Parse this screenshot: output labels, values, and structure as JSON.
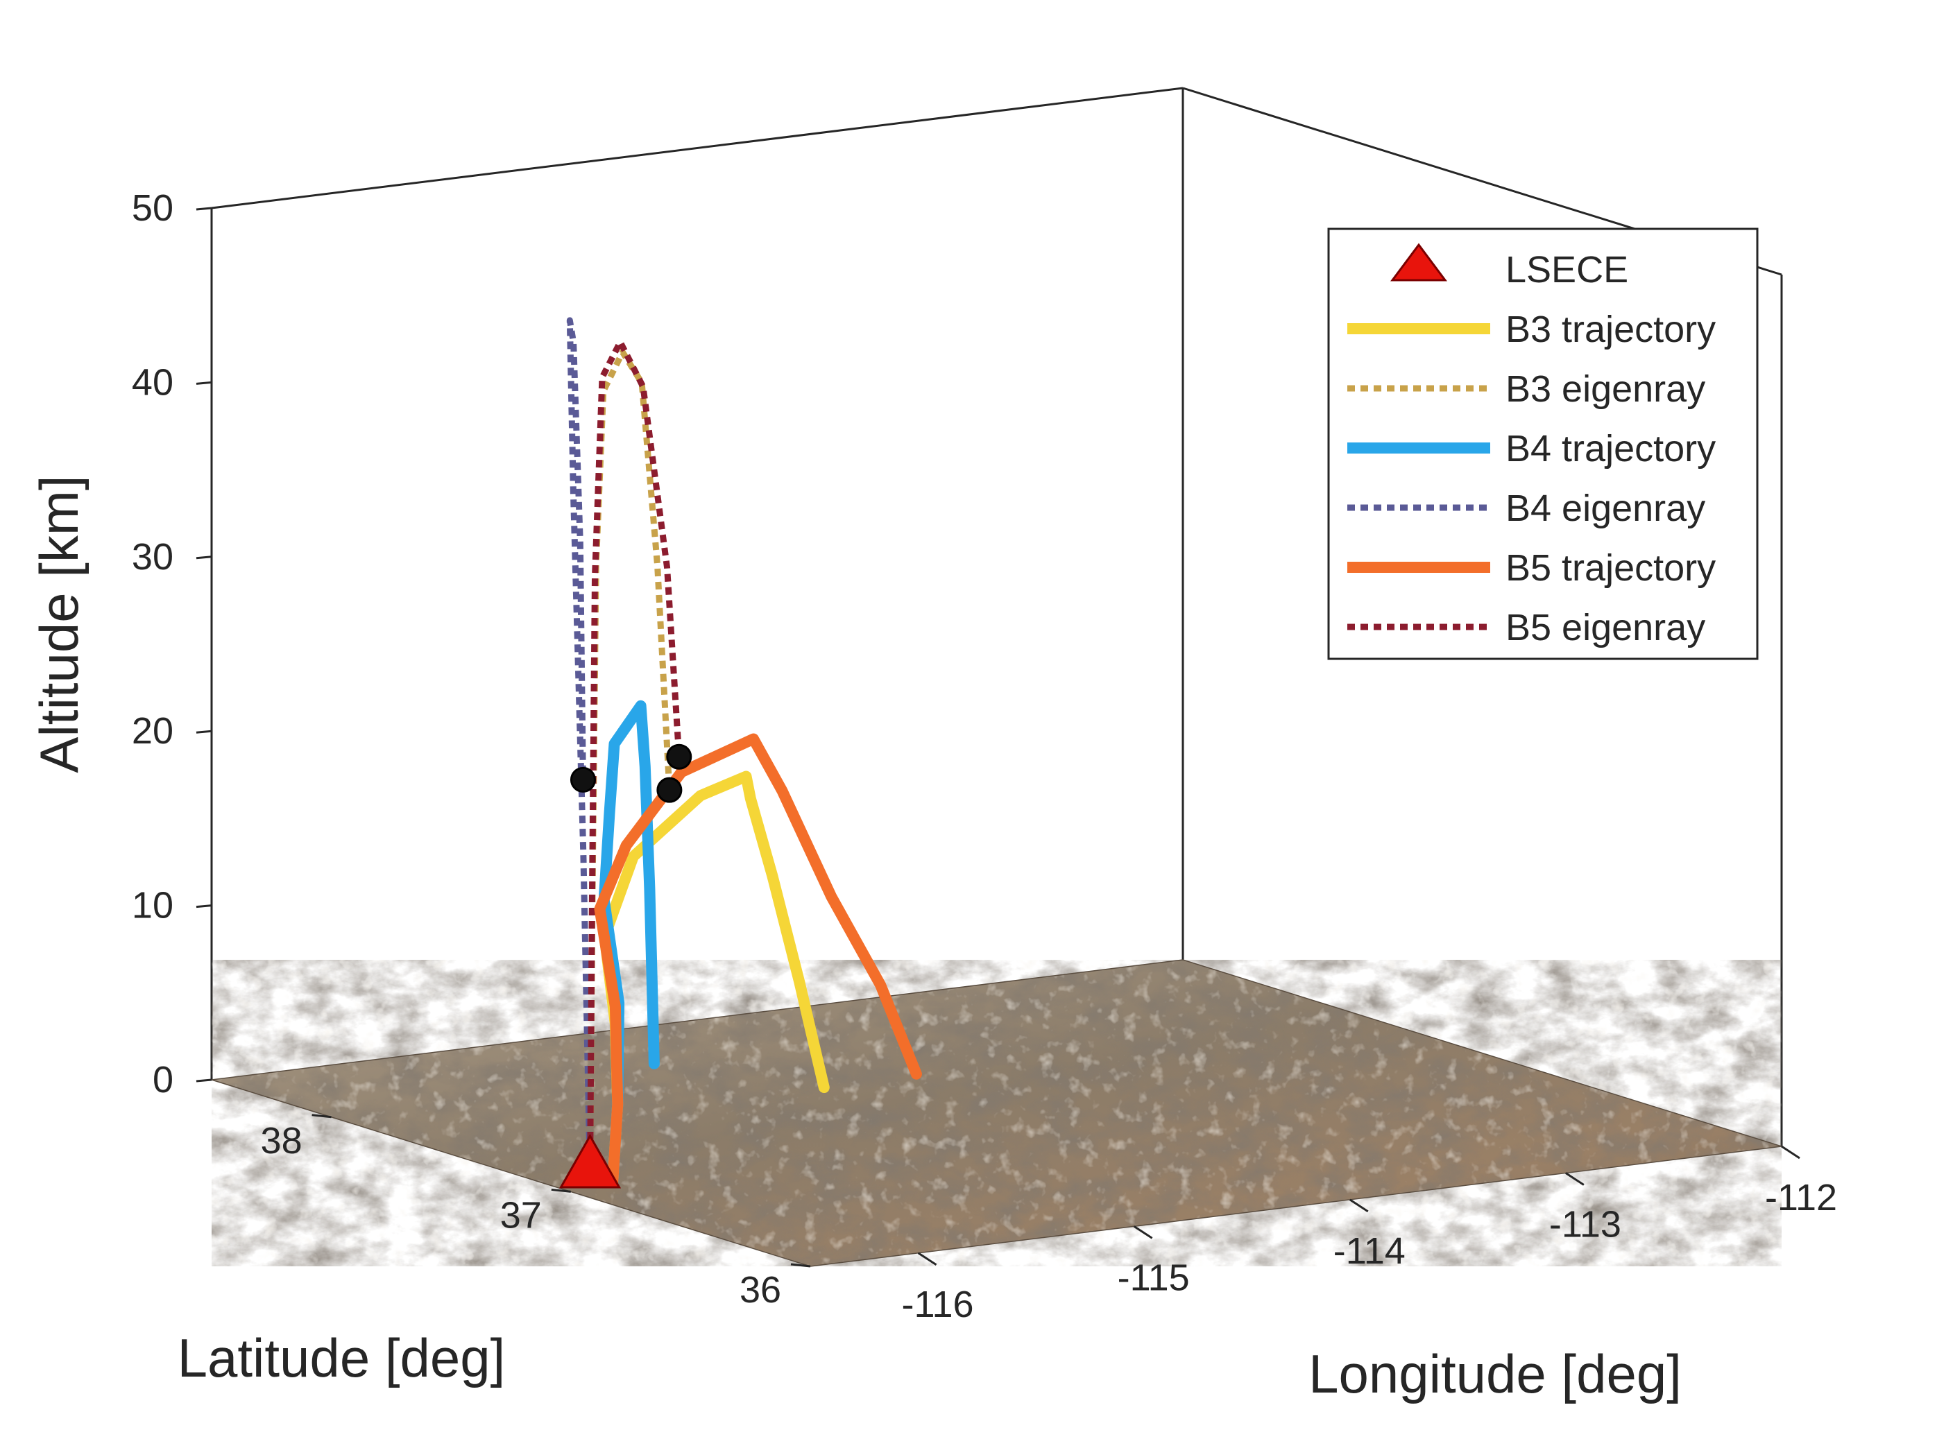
{
  "chart_data": {
    "type": "line",
    "projection": "3d",
    "title": "",
    "xlabel": "Longitude [deg]",
    "ylabel": "Latitude [deg]",
    "zlabel": "Altitude [km]",
    "xlim": [
      -116.5,
      -112
    ],
    "ylim": [
      36,
      38.5
    ],
    "zlim": [
      0,
      50
    ],
    "x_ticks": [
      -116,
      -115,
      -114,
      -113,
      -112
    ],
    "y_ticks": [
      36,
      37,
      38
    ],
    "z_ticks": [
      0,
      10,
      20,
      30,
      40,
      50
    ],
    "x_tick_labels": [
      "-116",
      "-115",
      "-114",
      "-113",
      "-112"
    ],
    "y_tick_labels": [
      "36",
      "37",
      "38"
    ],
    "z_tick_labels": [
      "0",
      "10",
      "20",
      "30",
      "40",
      "50"
    ],
    "grid": false,
    "legend_position": "top-right",
    "floor": "satellite terrain imagery",
    "station": {
      "name": "LSECE",
      "lon": -116.3,
      "lat": 37.1,
      "alt": 0,
      "color": "#e8140c"
    },
    "series": [
      {
        "name": "B3 trajectory",
        "style": "solid",
        "color": "#f5d637",
        "lon": [
          -116.25,
          -116.15,
          -116.05,
          -115.9,
          -115.6,
          -115.1,
          -114.8,
          -114.78,
          -114.7,
          -114.62,
          -114.55
        ],
        "lat": [
          37.05,
          37.12,
          37.22,
          37.4,
          37.55,
          37.72,
          37.8,
          37.8,
          37.78,
          37.74,
          37.7
        ],
        "alt": [
          0,
          4,
          8,
          12,
          15.5,
          17.5,
          17.8,
          16.5,
          12,
          6,
          0
        ]
      },
      {
        "name": "B3 eigenray",
        "style": "dotted",
        "color": "#c8a24a",
        "lon": [
          -116.3,
          -116.2,
          -116.05,
          -115.85,
          -115.65,
          -115.45,
          -115.3,
          -115.2
        ],
        "lat": [
          37.1,
          37.18,
          37.3,
          37.45,
          37.55,
          37.65,
          37.72,
          37.76
        ],
        "alt": [
          0,
          16,
          34,
          43,
          44.5,
          42,
          31,
          17.8
        ]
      },
      {
        "name": "B4 trajectory",
        "style": "solid",
        "color": "#29a6e9",
        "lon": [
          -116.25,
          -116.15,
          -116.0,
          -115.88,
          -115.6,
          -115.3,
          -114.9,
          -114.88,
          -114.87,
          -114.86
        ],
        "lat": [
          37.05,
          37.12,
          37.25,
          37.42,
          37.65,
          37.9,
          38.15,
          38.15,
          38.14,
          38.13
        ],
        "alt": [
          0,
          4,
          9,
          14,
          17.5,
          20,
          20.5,
          17,
          10,
          0
        ]
      },
      {
        "name": "B4 eigenray",
        "style": "dotted",
        "color": "#5a5a96",
        "lon": [
          -116.3,
          -116.22,
          -116.1,
          -115.95,
          -115.8,
          -115.68,
          -115.6
        ],
        "lat": [
          37.1,
          37.2,
          37.35,
          37.5,
          37.62,
          37.7,
          37.76
        ],
        "alt": [
          0,
          18,
          38,
          47,
          45,
          33,
          19
        ]
      },
      {
        "name": "B5 trajectory",
        "style": "solid",
        "color": "#f36e2a",
        "lon": [
          -116.25,
          -116.15,
          -116.05,
          -115.9,
          -115.6,
          -115.1,
          -114.6,
          -114.5,
          -114.35,
          -114.2,
          -114.1
        ],
        "lat": [
          37.05,
          37.12,
          37.22,
          37.42,
          37.58,
          37.8,
          37.95,
          37.92,
          37.85,
          37.78,
          37.72
        ],
        "alt": [
          0,
          4,
          9,
          13.5,
          16,
          18.5,
          19,
          16,
          10,
          5,
          0
        ]
      },
      {
        "name": "B5 eigenray",
        "style": "dotted",
        "color": "#8c1c2e",
        "lon": [
          -116.3,
          -116.18,
          -116.0,
          -115.8,
          -115.55,
          -115.3,
          -115.1,
          -115.0
        ],
        "lat": [
          37.1,
          37.2,
          37.35,
          37.5,
          37.65,
          37.78,
          37.86,
          37.9
        ],
        "alt": [
          0,
          15,
          33,
          43.5,
          44.5,
          41,
          30,
          18.8
        ]
      }
    ],
    "intersections": [
      {
        "series": "B4",
        "lon": -115.6,
        "lat": 37.76,
        "alt": 19
      },
      {
        "series": "B3",
        "lon": -115.2,
        "lat": 37.76,
        "alt": 17.8
      },
      {
        "series": "B5",
        "lon": -115.0,
        "lat": 37.9,
        "alt": 18.8
      }
    ]
  }
}
